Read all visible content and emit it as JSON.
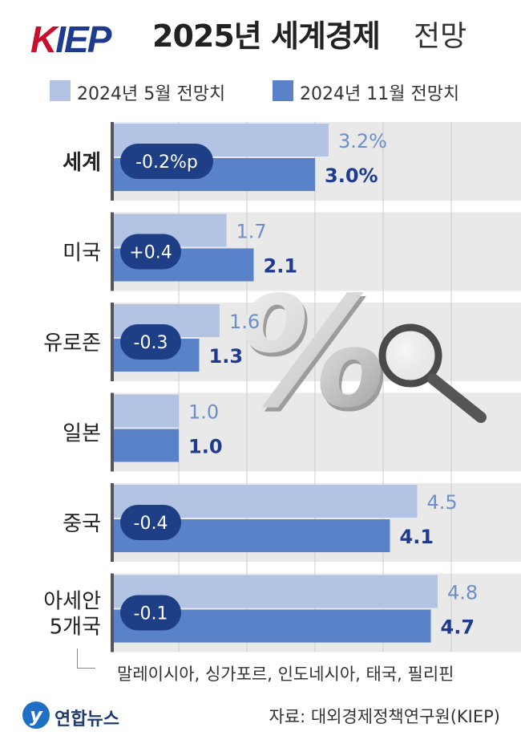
{
  "header": {
    "logo": "KIEP",
    "title": "2025년 세계경제",
    "title_suffix": "전망"
  },
  "legend": [
    {
      "label": "2024년 5월 전망치",
      "color": "#b3c3e3"
    },
    {
      "label": "2024년 11월 전망치",
      "color": "#5a82c8"
    }
  ],
  "chart_data": {
    "type": "bar",
    "orientation": "horizontal",
    "categories": [
      "세계",
      "미국",
      "유로존",
      "일본",
      "중국",
      "아세안\n5개국"
    ],
    "series": [
      {
        "name": "2024년 5월 전망치",
        "values": [
          3.2,
          1.7,
          1.6,
          1.0,
          4.5,
          4.8
        ],
        "labels": [
          "3.2%",
          "1.7",
          "1.6",
          "1.0",
          "4.5",
          "4.8"
        ]
      },
      {
        "name": "2024년 11월 전망치",
        "values": [
          3.0,
          2.1,
          1.3,
          1.0,
          4.1,
          4.7
        ],
        "labels": [
          "3.0%",
          "2.1",
          "1.3",
          "1.0",
          "4.1",
          "4.7"
        ]
      }
    ],
    "changes": [
      "-0.2%p",
      "+0.4",
      "-0.3",
      "",
      "-0.4",
      "-0.1"
    ],
    "xlim": [
      0,
      5.2
    ],
    "grid": true,
    "colors": {
      "may": "#b3c3e3",
      "nov": "#5a82c8",
      "may_label": "#6e8ec8",
      "nov_label": "#1f3b8f",
      "badge": "#1e3f86"
    }
  },
  "note": "말레이시아, 싱가포르, 인도네시아, 태국, 필리핀",
  "footer": {
    "logo": "연합뉴스",
    "source": "자료: 대외경제정책연구원(KIEP)"
  }
}
